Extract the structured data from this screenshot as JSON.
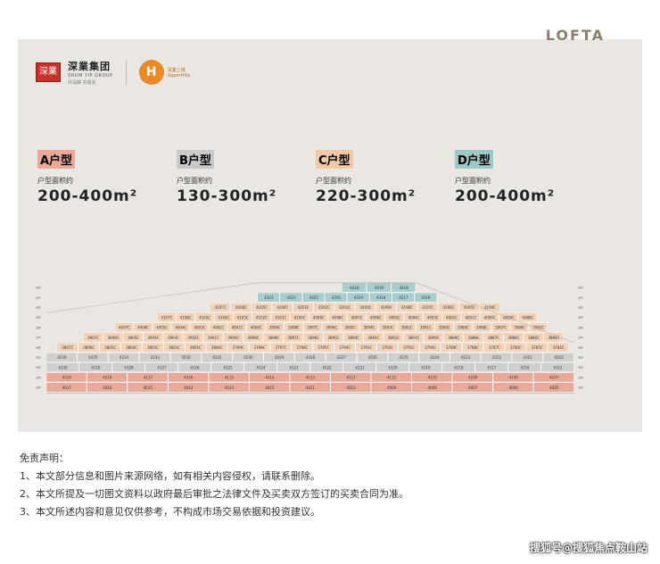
{
  "brand": {
    "seal_text": "深業",
    "name_cn": "深業集团",
    "name_en": "SHUM YIP GROUP",
    "slogan": "共深耕 共成长",
    "project_mark": "H",
    "project_cn": "深業上城",
    "project_en": "UpperHills"
  },
  "logo_right": "LOFTA",
  "unit_types": [
    {
      "tag": "A户型",
      "area_label": "户型面积约",
      "area": "200-400m²",
      "color": "#e8a99a"
    },
    {
      "tag": "B户型",
      "area_label": "户型面积约",
      "area": "130-300m²",
      "color": "#c9c9c9"
    },
    {
      "tag": "C户型",
      "area_label": "户型面积约",
      "area": "220-300m²",
      "color": "#efc9a8"
    },
    {
      "tag": "D户型",
      "area_label": "户型面积约",
      "area": "200-400m²",
      "color": "#9fc7c7"
    }
  ],
  "colors": {
    "A": "#e8a99a",
    "B": "#cfcfcf",
    "C": "#f1d3bb",
    "D": "#a9cdcd",
    "bg": "#eae7e2"
  },
  "elevation": {
    "rows": [
      {
        "type": "D",
        "labels": [
          "4420",
          "4419",
          "4418"
        ]
      },
      {
        "type": "D",
        "labels": [
          "4323",
          "4322",
          "4321",
          "4320",
          "4319",
          "4318",
          "4317",
          "4316"
        ]
      },
      {
        "type": "C",
        "labels": [
          "4207C",
          "4206C",
          "4205C",
          "4204C",
          "4203C",
          "4202C",
          "4201C",
          "4200C",
          "4199C",
          "4198C",
          "4197C",
          "4196C",
          "4195C",
          "4194C"
        ]
      },
      {
        "type": "C",
        "labels": [
          "4107C",
          "4106C",
          "4105C",
          "4104C",
          "4103C",
          "4102C",
          "4101C",
          "4100C",
          "4099C",
          "4098C",
          "4097C",
          "4096C",
          "4095C",
          "4094C",
          "4093C",
          "4092C",
          "4091C",
          "4090C",
          "4089C",
          "4088C"
        ]
      },
      {
        "type": "C",
        "labels": [
          "4007C",
          "4006C",
          "4005C",
          "4004C",
          "4003C",
          "4002C",
          "4001C",
          "4000C",
          "3999C",
          "3998C",
          "3997C",
          "3996C",
          "3995C",
          "3994C",
          "3993C",
          "3992C",
          "3991C",
          "3990C",
          "3989C",
          "3988C",
          "3987C",
          "3986C",
          "3985C"
        ]
      },
      {
        "type": "C",
        "labels": [
          "3907C",
          "3906C",
          "3905C",
          "3904C",
          "3903C",
          "3902C",
          "3901C",
          "3900C",
          "3899C",
          "3898C",
          "3897C",
          "3896C",
          "3895C",
          "3894C",
          "3893C",
          "3892C",
          "3891C",
          "3890C",
          "3889C",
          "3888C",
          "3887C",
          "3886C",
          "3885C",
          "3884C"
        ]
      },
      {
        "type": "C",
        "labels": [
          "3807C",
          "3806C",
          "3805C",
          "3804C",
          "3803C",
          "3802C",
          "3801C",
          "3800C",
          "3799C",
          "3798C",
          "3797C",
          "3796C",
          "3795C",
          "3794C",
          "3793C",
          "3792C",
          "3791C",
          "3790C",
          "3789C",
          "3788C",
          "3787C",
          "3786C",
          "3785C",
          "3784C"
        ]
      },
      {
        "type": "B",
        "labels": [
          "4236",
          "4235",
          "4234",
          "4233",
          "4232",
          "4231",
          "4230",
          "4229",
          "4228",
          "4227",
          "4226",
          "4225",
          "4224",
          "4223",
          "4222",
          "4221",
          "4220"
        ]
      },
      {
        "type": "B",
        "labels": [
          "4130",
          "4129",
          "4128",
          "4127",
          "4126",
          "4125",
          "4124",
          "4123",
          "4122",
          "4121",
          "4120",
          "4119",
          "4118",
          "4117",
          "4116",
          "4115"
        ]
      },
      {
        "type": "A",
        "labels": [
          "4119",
          "4118",
          "4117",
          "4116",
          "4115",
          "4114",
          "4113",
          "4112",
          "4111",
          "4110",
          "4109",
          "4108",
          "4107"
        ]
      },
      {
        "type": "A",
        "labels": [
          "4017",
          "4016",
          "4015",
          "4014",
          "4013",
          "4012",
          "4011",
          "4010",
          "4009",
          "4008",
          "4007",
          "4006",
          "4005"
        ]
      }
    ],
    "level_labels": [
      "42F",
      "41F",
      "40F",
      "39F",
      "38F",
      "37F",
      "36F",
      "35F",
      "34F",
      "33F",
      "32F"
    ]
  },
  "disclaimer": {
    "title": "免责声明：",
    "items": [
      "1、本文部分信息和图片来源网络，如有相关内容侵权，请联系删除。",
      "2、本文所提及一切图文资料以政府最后审批之法律文件及买卖双方签订的买卖合同为准。",
      "3、本文所述内容和意见仅供参考，不构成市场交易依据和投资建议。"
    ]
  },
  "watermark": "搜狐号@搜狐焦点鞍山站"
}
